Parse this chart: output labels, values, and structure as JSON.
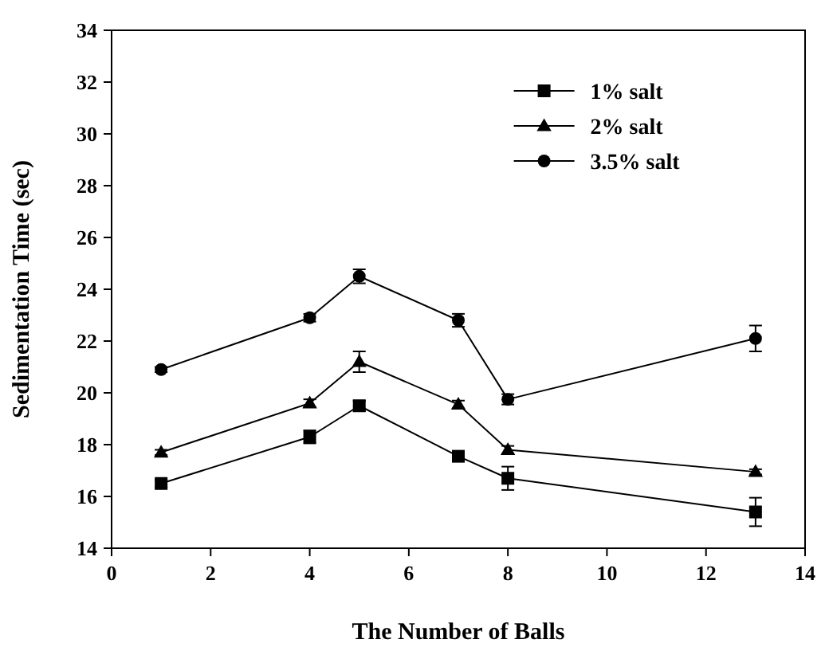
{
  "chart_data": {
    "type": "line",
    "xlabel": "The Number of Balls",
    "ylabel": "Sedimentation Time (sec)",
    "x": [
      1,
      4,
      5,
      7,
      8,
      13
    ],
    "series": [
      {
        "name": "1% salt",
        "color": "#000000",
        "marker": "square",
        "values": [
          16.5,
          18.3,
          19.5,
          17.55,
          16.7,
          15.4
        ],
        "errors": [
          0.15,
          0.25,
          0.2,
          0.15,
          0.45,
          0.55
        ]
      },
      {
        "name": "2% salt",
        "color": "#000000",
        "marker": "triangle",
        "values": [
          17.7,
          19.6,
          21.2,
          19.55,
          17.8,
          16.95
        ],
        "errors": [
          0.1,
          0.15,
          0.4,
          0.15,
          0.15,
          0.1
        ]
      },
      {
        "name": "3.5% salt",
        "color": "#000000",
        "marker": "circle",
        "values": [
          20.9,
          22.9,
          24.5,
          22.8,
          19.75,
          22.1
        ],
        "errors": [
          0.1,
          0.15,
          0.27,
          0.25,
          0.2,
          0.5
        ]
      }
    ],
    "xlim": [
      0,
      14
    ],
    "xticks": [
      0,
      2,
      4,
      6,
      8,
      10,
      12,
      14
    ],
    "ylim": [
      14,
      34
    ],
    "yticks": [
      14,
      16,
      18,
      20,
      22,
      24,
      26,
      28,
      30,
      32,
      34
    ],
    "grid": false,
    "legend": "top right",
    "line_style": "solid"
  }
}
